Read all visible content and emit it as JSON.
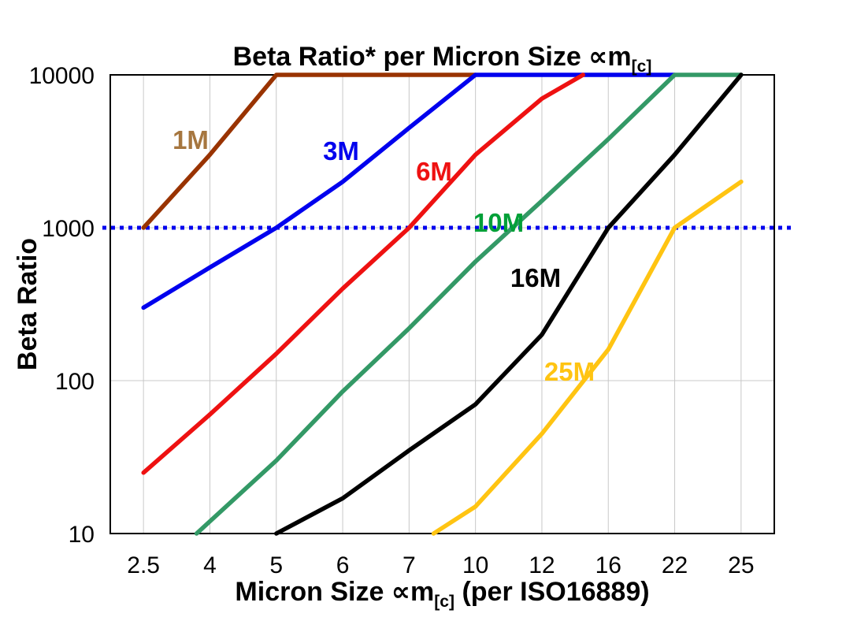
{
  "header": {
    "title_main": "Beta Ratio* per Micron Size ",
    "title_symbol": "∝m",
    "title_sub": "[c]"
  },
  "y_axis": {
    "label": "Beta Ratio",
    "ticks": [
      "10000",
      "1000",
      "100",
      "10"
    ]
  },
  "x_axis": {
    "label_main": "Micron Size ",
    "label_symbol": "∝m",
    "label_sub": "[c]",
    "label_suffix": " (per ISO16889)",
    "ticks": [
      "2.5",
      "4",
      "5",
      "6",
      "7",
      "10",
      "12",
      "16",
      "22",
      "25"
    ]
  },
  "chart_data": {
    "type": "line",
    "title": "Beta Ratio* per Micron Size ∝m[c]",
    "xlabel": "Micron Size ∝m[c] (per ISO16889)",
    "ylabel": "Beta Ratio",
    "x_scale": "categorical",
    "x_categories": [
      2.5,
      4,
      5,
      6,
      7,
      10,
      12,
      16,
      22,
      25
    ],
    "y_scale": "log",
    "ylim": [
      10,
      10000
    ],
    "y_ticks": [
      10,
      100,
      1000,
      10000
    ],
    "grid": true,
    "grid_color": "#C8C8C8",
    "reference_line": {
      "y": 1000,
      "color": "#0000EE",
      "style": "dotted"
    },
    "legend_position": "inline-labels",
    "series": [
      {
        "name": "1M",
        "color": "#993300",
        "label_color": "#A6763F",
        "label_pos": [
          242,
          177
        ],
        "points": [
          [
            0,
            1000
          ],
          [
            1,
            3000
          ],
          [
            2,
            10000
          ],
          [
            5,
            10000
          ]
        ]
      },
      {
        "name": "3M",
        "color": "#0000EE",
        "label_color": "#0000EE",
        "label_pos": [
          433,
          191
        ],
        "points": [
          [
            0,
            300
          ],
          [
            1,
            550
          ],
          [
            2,
            1000
          ],
          [
            3,
            2000
          ],
          [
            4,
            4500
          ],
          [
            5,
            10000
          ],
          [
            8,
            10000
          ]
        ]
      },
      {
        "name": "6M",
        "color": "#EE1111",
        "label_color": "#EE1111",
        "label_pos": [
          551,
          217
        ],
        "points": [
          [
            0,
            25
          ],
          [
            1,
            60
          ],
          [
            2,
            150
          ],
          [
            3,
            400
          ],
          [
            4,
            1000
          ],
          [
            5,
            3000
          ],
          [
            6,
            7000
          ],
          [
            6.62,
            10000
          ]
        ]
      },
      {
        "name": "10M",
        "color": "#339966",
        "label_color": "#00A038",
        "label_pos": [
          633,
          282
        ],
        "points": [
          [
            0.8,
            10
          ],
          [
            1,
            12
          ],
          [
            2,
            30
          ],
          [
            3,
            85
          ],
          [
            4,
            220
          ],
          [
            5,
            600
          ],
          [
            6,
            1500
          ],
          [
            7,
            3800
          ],
          [
            8,
            10000
          ],
          [
            9,
            10000
          ]
        ]
      },
      {
        "name": "16M",
        "color": "#000000",
        "label_color": "#000000",
        "label_pos": [
          680,
          352
        ],
        "points": [
          [
            2,
            10
          ],
          [
            3,
            17
          ],
          [
            4,
            35
          ],
          [
            5,
            70
          ],
          [
            6,
            200
          ],
          [
            7,
            1000
          ],
          [
            8,
            3000
          ],
          [
            9,
            10000
          ]
        ]
      },
      {
        "name": "25M",
        "color": "#FFC412",
        "label_color": "#FFC412",
        "label_pos": [
          723,
          471
        ],
        "points": [
          [
            4.37,
            10
          ],
          [
            5,
            15
          ],
          [
            6,
            45
          ],
          [
            7,
            160
          ],
          [
            8,
            1000
          ],
          [
            9,
            2000
          ]
        ]
      }
    ]
  }
}
